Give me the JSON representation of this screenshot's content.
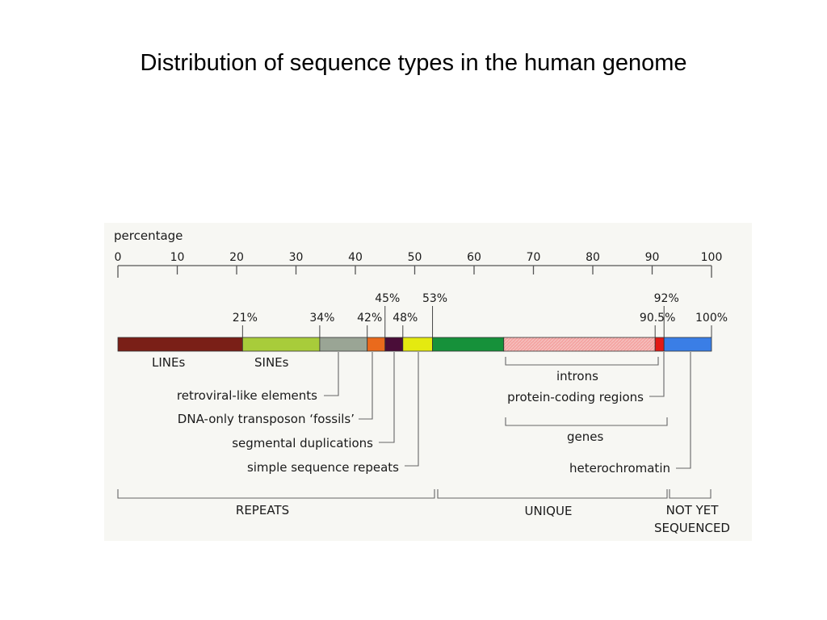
{
  "slide": {
    "title": "Distribution of sequence types in the human genome"
  },
  "colors": {
    "page_background": "#ffffff",
    "figure_background": "#f7f7f3",
    "line": "#555555",
    "text": "#1a1a1a"
  },
  "scale": {
    "label": "percentage",
    "ticks": [
      "0",
      "10",
      "20",
      "30",
      "40",
      "50",
      "60",
      "70",
      "80",
      "90",
      "100"
    ],
    "min": 0,
    "max": 100
  },
  "bar": {
    "segments": [
      {
        "id": "lines",
        "start": 0,
        "end": 21,
        "color": "#7a1f17"
      },
      {
        "id": "sines",
        "start": 21,
        "end": 34,
        "color": "#a8cc3a"
      },
      {
        "id": "retroviral",
        "start": 34,
        "end": 42,
        "color": "#9aa595"
      },
      {
        "id": "dna-transposon",
        "start": 42,
        "end": 45,
        "color": "#ea6a1c"
      },
      {
        "id": "segmental",
        "start": 45,
        "end": 48,
        "color": "#4a0d38"
      },
      {
        "id": "simple-repeats",
        "start": 48,
        "end": 53,
        "color": "#e4ea10"
      },
      {
        "id": "unique-other",
        "start": 53,
        "end": 65,
        "color": "#16913a"
      },
      {
        "id": "introns",
        "start": 65,
        "end": 90.5,
        "color": "#f4a4a2",
        "hatched": true
      },
      {
        "id": "protein-coding",
        "start": 90.5,
        "end": 92,
        "color": "#e31a16"
      },
      {
        "id": "heterochromatin",
        "start": 92,
        "end": 100,
        "color": "#3a7ee6"
      }
    ],
    "markers": [
      {
        "label": "21%",
        "value": 21,
        "row": "low"
      },
      {
        "label": "34%",
        "value": 34,
        "row": "low"
      },
      {
        "label": "42%",
        "value": 42,
        "row": "low"
      },
      {
        "label": "45%",
        "value": 45,
        "row": "high"
      },
      {
        "label": "48%",
        "value": 48,
        "row": "low"
      },
      {
        "label": "53%",
        "value": 53,
        "row": "high"
      },
      {
        "label": "90.5%",
        "value": 90.5,
        "row": "low"
      },
      {
        "label": "92%",
        "value": 92,
        "row": "high"
      },
      {
        "label": "100%",
        "value": 100,
        "row": "low"
      }
    ]
  },
  "labels": {
    "lines": "LINEs",
    "sines": "SINEs",
    "introns": "introns",
    "genes": "genes",
    "retroviral": "retroviral-like elements",
    "dna_transposon": "DNA-only transposon ‘fossils’",
    "segmental": "segmental duplications",
    "simple_repeats": "simple sequence repeats",
    "protein_coding": "protein-coding regions",
    "heterochromatin": "heterochromatin"
  },
  "groups": {
    "repeats": "REPEATS",
    "unique": "UNIQUE",
    "not_yet_1": "NOT YET",
    "not_yet_2": "SEQUENCED"
  }
}
